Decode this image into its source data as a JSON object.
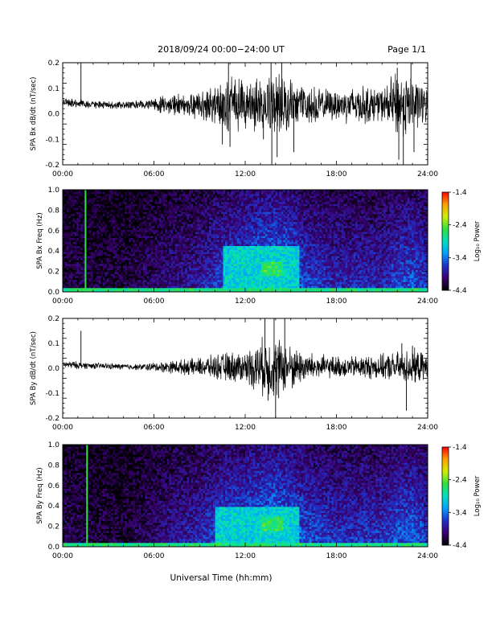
{
  "header": {
    "title": "2018/09/24   00:00−24:00 UT",
    "page": "Page 1/1"
  },
  "xaxis": {
    "label": "Universal Time (hh:mm)",
    "ticks": [
      "00:00",
      "06:00",
      "12:00",
      "18:00",
      "24:00"
    ],
    "tick_hours": [
      0,
      6,
      12,
      18,
      24
    ],
    "range_hours": [
      0,
      24
    ]
  },
  "colorbar": {
    "label": "Log₁₀ Power",
    "ticks": [
      "-1.4",
      "-2.4",
      "-3.4",
      "-4.4"
    ],
    "tick_values": [
      -1.4,
      -2.4,
      -3.4,
      -4.4
    ],
    "range": [
      -4.4,
      -1.4
    ],
    "colormap": [
      "#000000",
      "#3a0070",
      "#2030c8",
      "#00a0ff",
      "#00e0c0",
      "#30e040",
      "#d0f000",
      "#ffa000",
      "#ff0000"
    ]
  },
  "chart_data": [
    {
      "type": "line",
      "title": "",
      "ylabel": "SPA Bx dB/dt (nT/sec)",
      "xlabel": "",
      "xlim": [
        0,
        24
      ],
      "ylim": [
        -0.2,
        0.2
      ],
      "yticks": [
        "0.2",
        "0.1",
        "0.0",
        "-0.1",
        "-0.2"
      ],
      "ytick_values": [
        0.2,
        0.1,
        0.0,
        -0.1,
        -0.2
      ],
      "series": [
        {
          "x": [
            0,
            1,
            2,
            3,
            4,
            5,
            6,
            7,
            8,
            9,
            10,
            11,
            12,
            13,
            14,
            15,
            16,
            17,
            18,
            19,
            20,
            21,
            22,
            23,
            24
          ],
          "amplitude": [
            0.015,
            0.015,
            0.012,
            0.012,
            0.012,
            0.013,
            0.02,
            0.03,
            0.035,
            0.045,
            0.06,
            0.09,
            0.07,
            0.09,
            0.1,
            0.08,
            0.06,
            0.05,
            0.05,
            0.06,
            0.06,
            0.05,
            0.11,
            0.09,
            0.05
          ],
          "offset": [
            0.045,
            0.04,
            0.035,
            0.035,
            0.035,
            0.035,
            0.035,
            0.035,
            0.035,
            0.035,
            0.035,
            0.035,
            0.035,
            0.035,
            0.035,
            0.035,
            0.035,
            0.035,
            0.035,
            0.035,
            0.035,
            0.035,
            0.035,
            0.035,
            0.035
          ],
          "spikes": [
            [
              1.2,
              0.2
            ],
            [
              10.5,
              -0.12
            ],
            [
              10.9,
              0.2
            ],
            [
              11.0,
              -0.13
            ],
            [
              13.2,
              -0.1
            ],
            [
              13.7,
              0.2
            ],
            [
              13.75,
              -0.2
            ],
            [
              14.1,
              -0.17
            ],
            [
              14.4,
              0.2
            ],
            [
              15.2,
              -0.15
            ],
            [
              22.0,
              0.18
            ],
            [
              22.1,
              -0.18
            ],
            [
              22.4,
              -0.2
            ],
            [
              22.9,
              0.2
            ],
            [
              23.1,
              -0.15
            ]
          ]
        }
      ]
    },
    {
      "type": "heatmap",
      "title": "",
      "ylabel": "SPA Bx Freq (Hz)",
      "xlabel": "",
      "xlim": [
        0,
        24
      ],
      "ylim": [
        0.0,
        1.0
      ],
      "yticks": [
        "1.0",
        "0.8",
        "0.6",
        "0.4",
        "0.2",
        "0.0"
      ],
      "ytick_values": [
        1.0,
        0.8,
        0.6,
        0.4,
        0.2,
        0.0
      ],
      "zlim": [
        -4.4,
        -1.4
      ],
      "activity_by_hour": [
        0.15,
        0.2,
        0.15,
        0.15,
        0.15,
        0.2,
        0.25,
        0.3,
        0.35,
        0.4,
        0.5,
        0.6,
        0.65,
        0.75,
        0.8,
        0.7,
        0.55,
        0.5,
        0.45,
        0.45,
        0.45,
        0.45,
        0.55,
        0.6,
        0.5
      ],
      "vertical_lines_hours": [
        1.5
      ],
      "features": [
        {
          "hours": [
            10.5,
            15.5
          ],
          "freq": [
            0.0,
            0.45
          ],
          "level": -3.0
        },
        {
          "hours": [
            13.0,
            14.5
          ],
          "freq": [
            0.15,
            0.3
          ],
          "level": -2.6
        },
        {
          "hours": [
            0.0,
            24.0
          ],
          "freq": [
            0.0,
            0.03
          ],
          "level": -2.7
        }
      ]
    },
    {
      "type": "line",
      "title": "",
      "ylabel": "SPA By dB/dt (nT/sec)",
      "xlabel": "",
      "xlim": [
        0,
        24
      ],
      "ylim": [
        -0.2,
        0.2
      ],
      "yticks": [
        "0.2",
        "0.1",
        "0.0",
        "-0.1",
        "-0.2"
      ],
      "ytick_values": [
        0.2,
        0.1,
        0.0,
        -0.1,
        -0.2
      ],
      "series": [
        {
          "x": [
            0,
            1,
            2,
            3,
            4,
            5,
            6,
            7,
            8,
            9,
            10,
            11,
            12,
            13,
            14,
            15,
            16,
            17,
            18,
            19,
            20,
            21,
            22,
            23,
            24
          ],
          "amplitude": [
            0.012,
            0.012,
            0.01,
            0.01,
            0.01,
            0.01,
            0.015,
            0.02,
            0.025,
            0.03,
            0.04,
            0.05,
            0.05,
            0.09,
            0.1,
            0.07,
            0.05,
            0.04,
            0.035,
            0.035,
            0.04,
            0.04,
            0.05,
            0.06,
            0.04
          ],
          "offset": [
            0.015,
            0.012,
            0.01,
            0.008,
            0.006,
            0.005,
            0.005,
            0.005,
            0.005,
            0.005,
            0.005,
            0.005,
            0.005,
            0.005,
            0.005,
            0.005,
            0.005,
            0.005,
            0.005,
            0.005,
            0.005,
            0.005,
            0.005,
            0.005,
            0.005
          ],
          "spikes": [
            [
              1.2,
              0.15
            ],
            [
              13.3,
              0.2
            ],
            [
              13.5,
              -0.13
            ],
            [
              13.9,
              0.2
            ],
            [
              14.0,
              -0.2
            ],
            [
              14.2,
              -0.12
            ],
            [
              14.6,
              0.2
            ],
            [
              15.1,
              -0.08
            ],
            [
              22.3,
              0.1
            ],
            [
              22.6,
              -0.17
            ],
            [
              23.0,
              0.09
            ]
          ]
        }
      ]
    },
    {
      "type": "heatmap",
      "title": "",
      "ylabel": "SPA By Freq (Hz)",
      "xlabel": "",
      "xlim": [
        0,
        24
      ],
      "ylim": [
        0.0,
        1.0
      ],
      "yticks": [
        "1.0",
        "0.8",
        "0.6",
        "0.4",
        "0.2",
        "0.0"
      ],
      "ytick_values": [
        1.0,
        0.8,
        0.6,
        0.4,
        0.2,
        0.0
      ],
      "zlim": [
        -4.4,
        -1.4
      ],
      "activity_by_hour": [
        0.2,
        0.2,
        0.15,
        0.15,
        0.15,
        0.2,
        0.25,
        0.35,
        0.4,
        0.45,
        0.55,
        0.65,
        0.65,
        0.75,
        0.8,
        0.7,
        0.6,
        0.55,
        0.5,
        0.5,
        0.5,
        0.5,
        0.6,
        0.65,
        0.5
      ],
      "vertical_lines_hours": [
        1.6
      ],
      "features": [
        {
          "hours": [
            10.0,
            15.5
          ],
          "freq": [
            0.0,
            0.4
          ],
          "level": -3.0
        },
        {
          "hours": [
            13.0,
            14.5
          ],
          "freq": [
            0.15,
            0.3
          ],
          "level": -2.6
        },
        {
          "hours": [
            0.0,
            24.0
          ],
          "freq": [
            0.0,
            0.03
          ],
          "level": -2.7
        }
      ]
    }
  ]
}
